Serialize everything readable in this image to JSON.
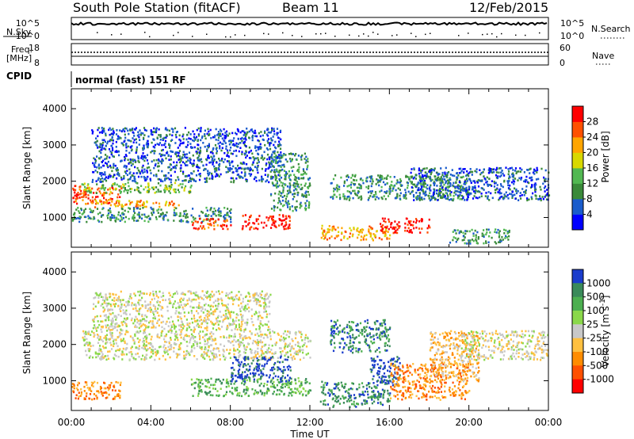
{
  "header": {
    "station": "South Pole Station (fitACF)",
    "beam": "Beam 11",
    "date": "12/Feb/2015",
    "cpid_label": "CPID",
    "cpid_value": "normal (fast) 151 RF"
  },
  "nsky_panel": {
    "left_label": "N.Sky",
    "right_label": "N.Search",
    "left_ticks": [
      "10^5",
      "10^0"
    ],
    "right_ticks": [
      "10^5",
      "10^0"
    ]
  },
  "freq_panel": {
    "left_label_1": "Freq.",
    "left_label_2": "[MHz]",
    "right_label": "Nave",
    "left_ticks": [
      "18",
      "8"
    ],
    "right_ticks": [
      "60",
      "0"
    ]
  },
  "chart_data": [
    {
      "type": "heatmap",
      "panel": "power",
      "ylabel": "Slant Range [km]",
      "ylim": [
        180,
        4550
      ],
      "yticks": [
        1000,
        2000,
        3000,
        4000
      ],
      "xlabel": "",
      "x_ticks": [
        "00:00",
        "04:00",
        "08:00",
        "12:00",
        "16:00",
        "20:00",
        "00:00"
      ],
      "colorbar": {
        "label": "Power [dB]",
        "ticks": [
          "4",
          "8",
          "12",
          "16",
          "20",
          "24",
          "28"
        ],
        "colors": [
          "#0000ff",
          "#1a5ccc",
          "#3a8a3a",
          "#52b852",
          "#d8d800",
          "#ffa500",
          "#ff5000",
          "#ff0000"
        ]
      },
      "echo_regions": [
        {
          "t": [
            0.0,
            2.5
          ],
          "r": [
            1400,
            1900
          ],
          "level": 6
        },
        {
          "t": [
            0.5,
            6.0
          ],
          "r": [
            1700,
            2000
          ],
          "level": 3
        },
        {
          "t": [
            1.0,
            5.5
          ],
          "r": [
            1300,
            1500
          ],
          "level": 5
        },
        {
          "t": [
            0.0,
            8.0
          ],
          "r": [
            900,
            1300
          ],
          "level": 2
        },
        {
          "t": [
            1.0,
            10.5
          ],
          "r": [
            2000,
            3500
          ],
          "level": 1
        },
        {
          "t": [
            6.0,
            8.0
          ],
          "r": [
            700,
            1000
          ],
          "level": 6
        },
        {
          "t": [
            8.5,
            11.0
          ],
          "r": [
            700,
            1100
          ],
          "level": 7
        },
        {
          "t": [
            10.0,
            12.0
          ],
          "r": [
            1200,
            2800
          ],
          "level": 2
        },
        {
          "t": [
            12.5,
            16.0
          ],
          "r": [
            400,
            800
          ],
          "level": 5
        },
        {
          "t": [
            13.0,
            20.0
          ],
          "r": [
            1500,
            2200
          ],
          "level": 2
        },
        {
          "t": [
            15.5,
            18.0
          ],
          "r": [
            600,
            1000
          ],
          "level": 7
        },
        {
          "t": [
            17.0,
            24.0
          ],
          "r": [
            1500,
            2400
          ],
          "level": 1
        },
        {
          "t": [
            19.0,
            22.0
          ],
          "r": [
            300,
            700
          ],
          "level": 2
        }
      ]
    },
    {
      "type": "heatmap",
      "panel": "velocity",
      "ylabel": "Slant Range [km]",
      "ylim": [
        180,
        4550
      ],
      "yticks": [
        1000,
        2000,
        3000,
        4000
      ],
      "xlabel": "Time UT",
      "x_ticks": [
        "00:00",
        "04:00",
        "08:00",
        "12:00",
        "16:00",
        "20:00",
        "00:00"
      ],
      "colorbar": {
        "label": "Velocity [m s^-1]",
        "ticks": [
          "1000",
          "500",
          "100",
          "25",
          "-25",
          "-100",
          "-500",
          "-1000"
        ],
        "colors": [
          "#1a3ccc",
          "#3a8a5a",
          "#4caf50",
          "#8ad84a",
          "#c8c8c8",
          "#ffc040",
          "#ff8c00",
          "#ff5000",
          "#ff0000"
        ]
      },
      "echo_regions": [
        {
          "t": [
            0.0,
            2.5
          ],
          "r": [
            500,
            1000
          ],
          "level": 6
        },
        {
          "t": [
            0.5,
            12.0
          ],
          "r": [
            1600,
            2400
          ],
          "level": 4
        },
        {
          "t": [
            1.0,
            10.0
          ],
          "r": [
            2400,
            3500
          ],
          "level": 4
        },
        {
          "t": [
            6.0,
            12.0
          ],
          "r": [
            600,
            1100
          ],
          "level": 2
        },
        {
          "t": [
            8.0,
            11.0
          ],
          "r": [
            1000,
            1700
          ],
          "level": 0
        },
        {
          "t": [
            12.5,
            16.0
          ],
          "r": [
            300,
            1000
          ],
          "level": 1
        },
        {
          "t": [
            13.0,
            16.0
          ],
          "r": [
            1800,
            2700
          ],
          "level": 1
        },
        {
          "t": [
            15.0,
            16.5
          ],
          "r": [
            900,
            1700
          ],
          "level": 0
        },
        {
          "t": [
            16.0,
            20.0
          ],
          "r": [
            500,
            1500
          ],
          "level": 6
        },
        {
          "t": [
            18.0,
            20.5
          ],
          "r": [
            1000,
            2400
          ],
          "level": 5
        },
        {
          "t": [
            19.5,
            24.0
          ],
          "r": [
            1600,
            2400
          ],
          "level": 4
        }
      ]
    }
  ]
}
